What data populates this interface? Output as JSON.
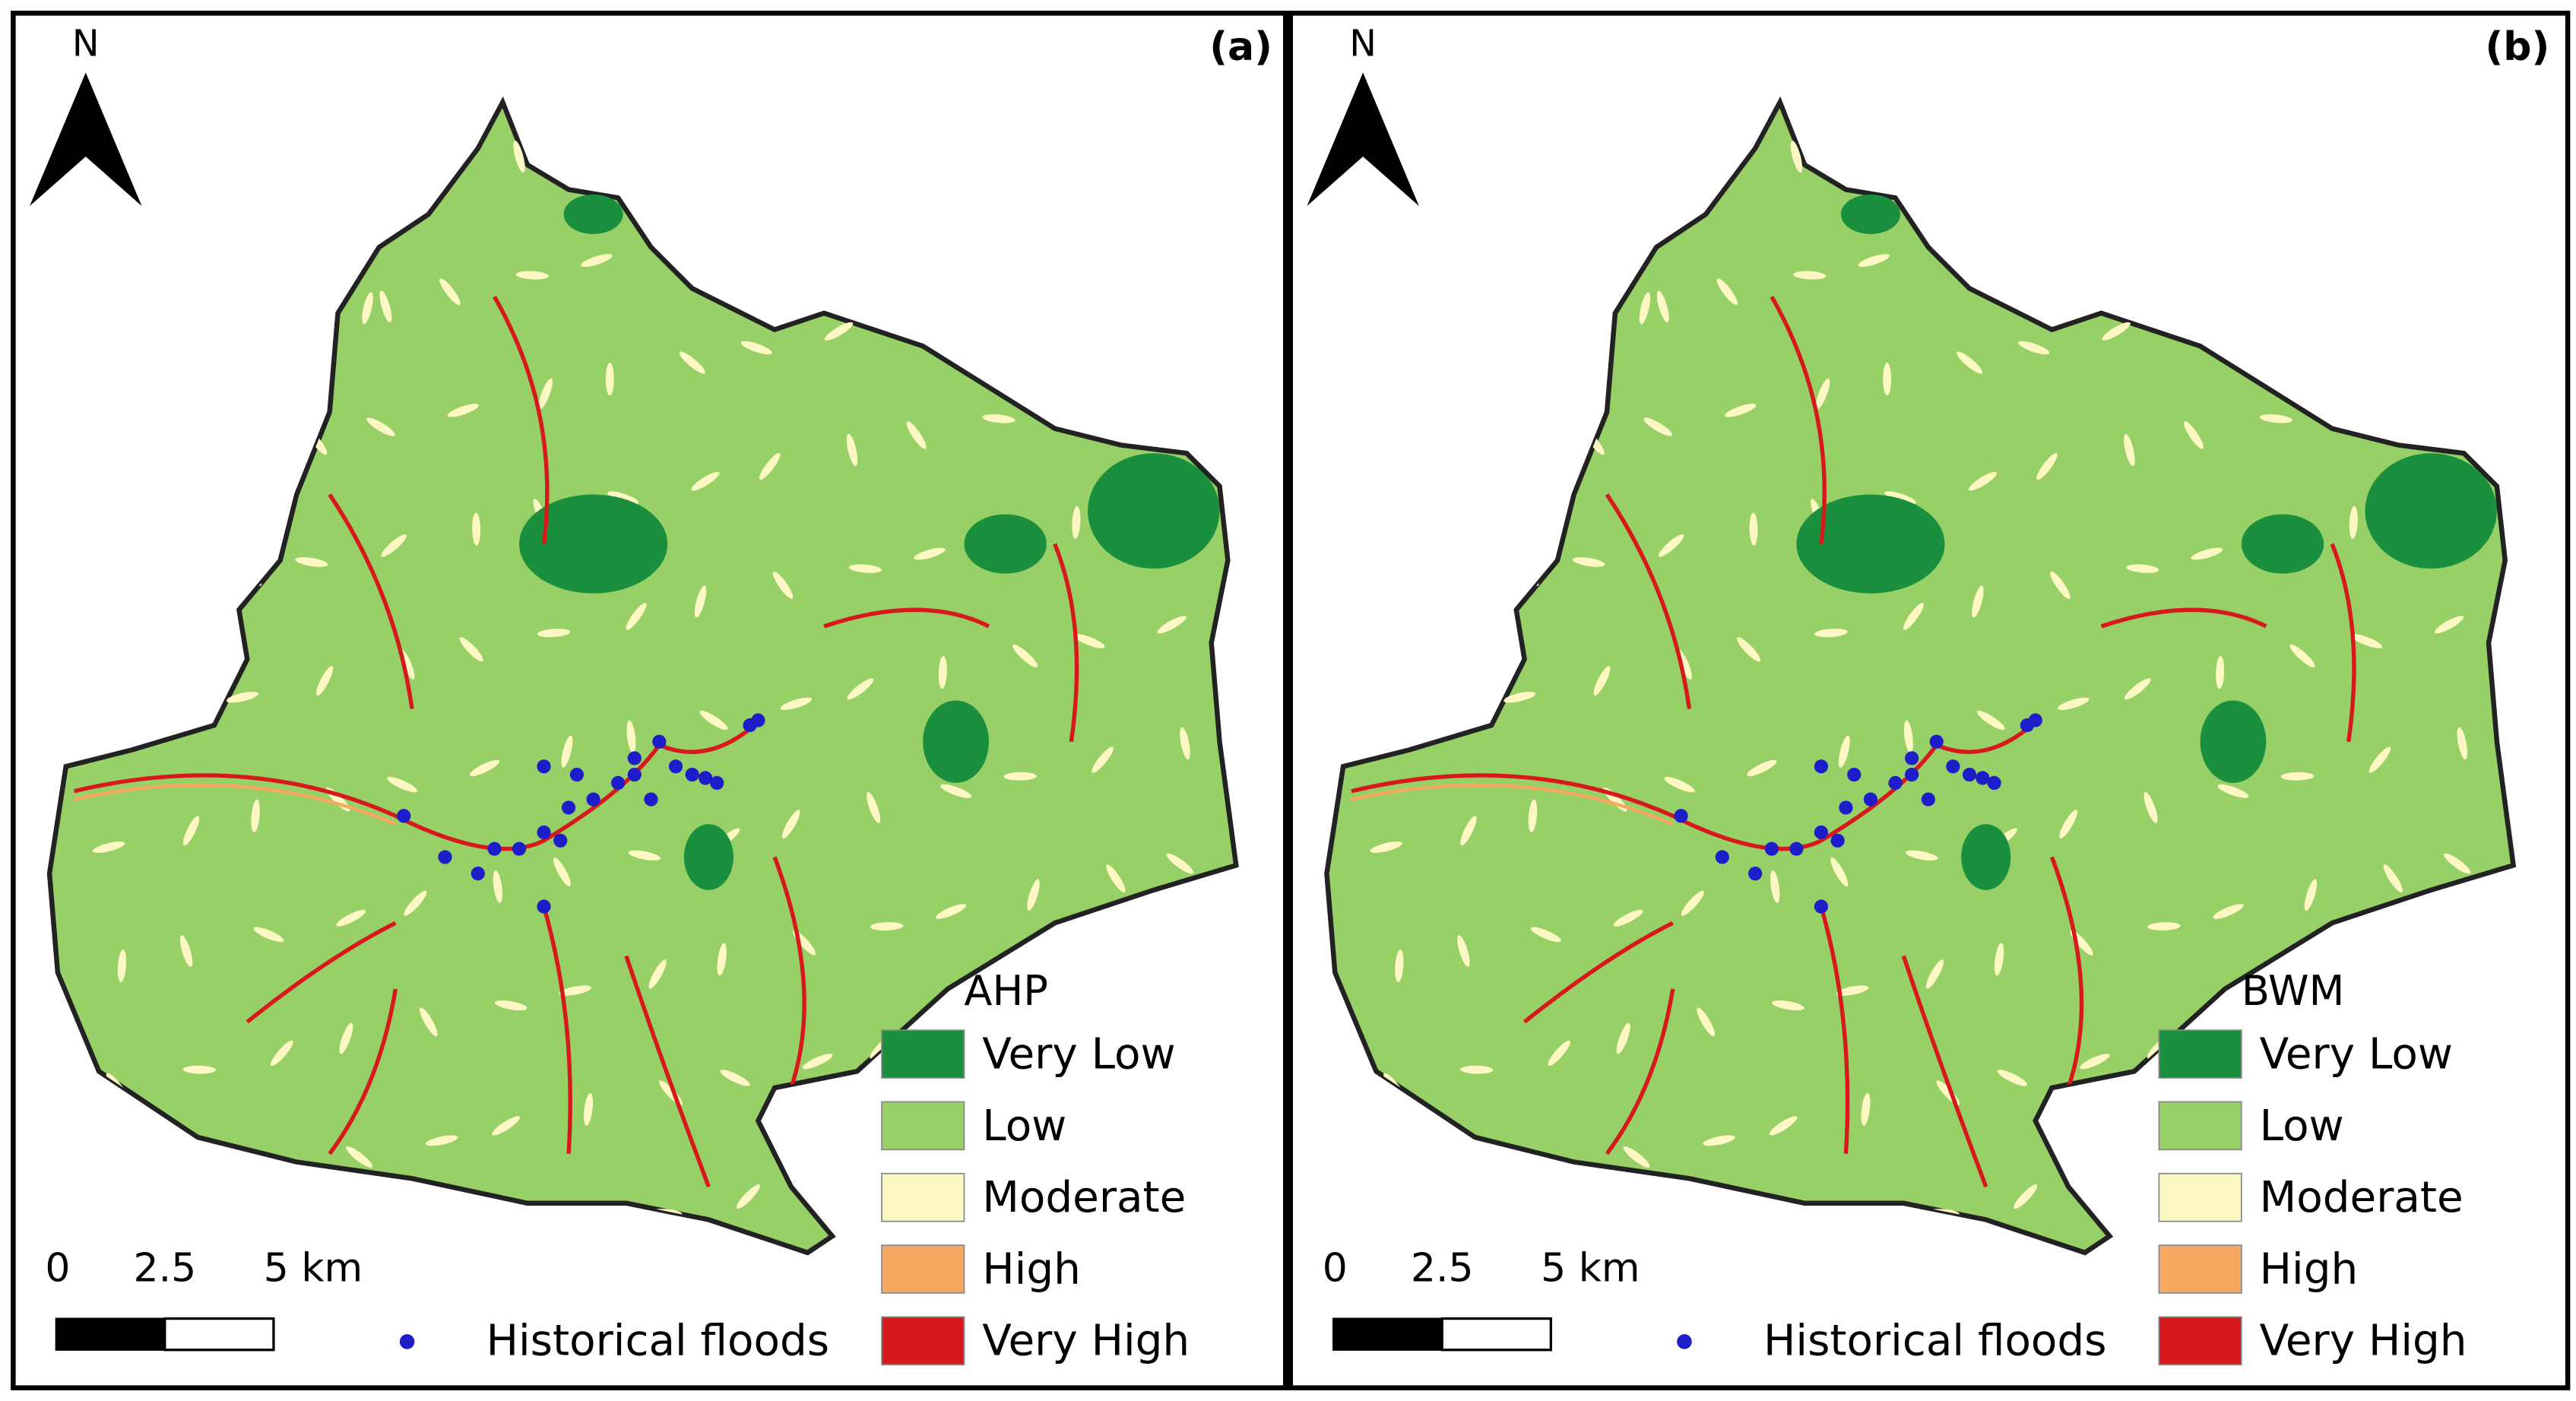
{
  "panels": [
    {
      "label": "(a)",
      "north": "N",
      "legend": {
        "title": "AHP",
        "items": [
          {
            "label": "Very Low",
            "color": "#1a8f3e"
          },
          {
            "label": "Low",
            "color": "#97d067"
          },
          {
            "label": "Moderate",
            "color": "#fdf8c3"
          },
          {
            "label": "High",
            "color": "#f9a862"
          },
          {
            "label": "Very High",
            "color": "#d7191c"
          }
        ],
        "points_label": "Historical floods",
        "points_color": "#1d1dc9"
      },
      "scale": {
        "ticks": [
          "0",
          "2.5",
          "5 km"
        ]
      }
    },
    {
      "label": "(b)",
      "north": "N",
      "legend": {
        "title": "BWM",
        "items": [
          {
            "label": "Very Low",
            "color": "#1a8f3e"
          },
          {
            "label": "Low",
            "color": "#97d067"
          },
          {
            "label": "Moderate",
            "color": "#fdf8c3"
          },
          {
            "label": "High",
            "color": "#f9a862"
          },
          {
            "label": "Very High",
            "color": "#d7191c"
          }
        ],
        "points_label": "Historical floods",
        "points_color": "#1d1dc9"
      },
      "scale": {
        "ticks": [
          "0",
          "2.5",
          "5 km"
        ]
      }
    }
  ]
}
